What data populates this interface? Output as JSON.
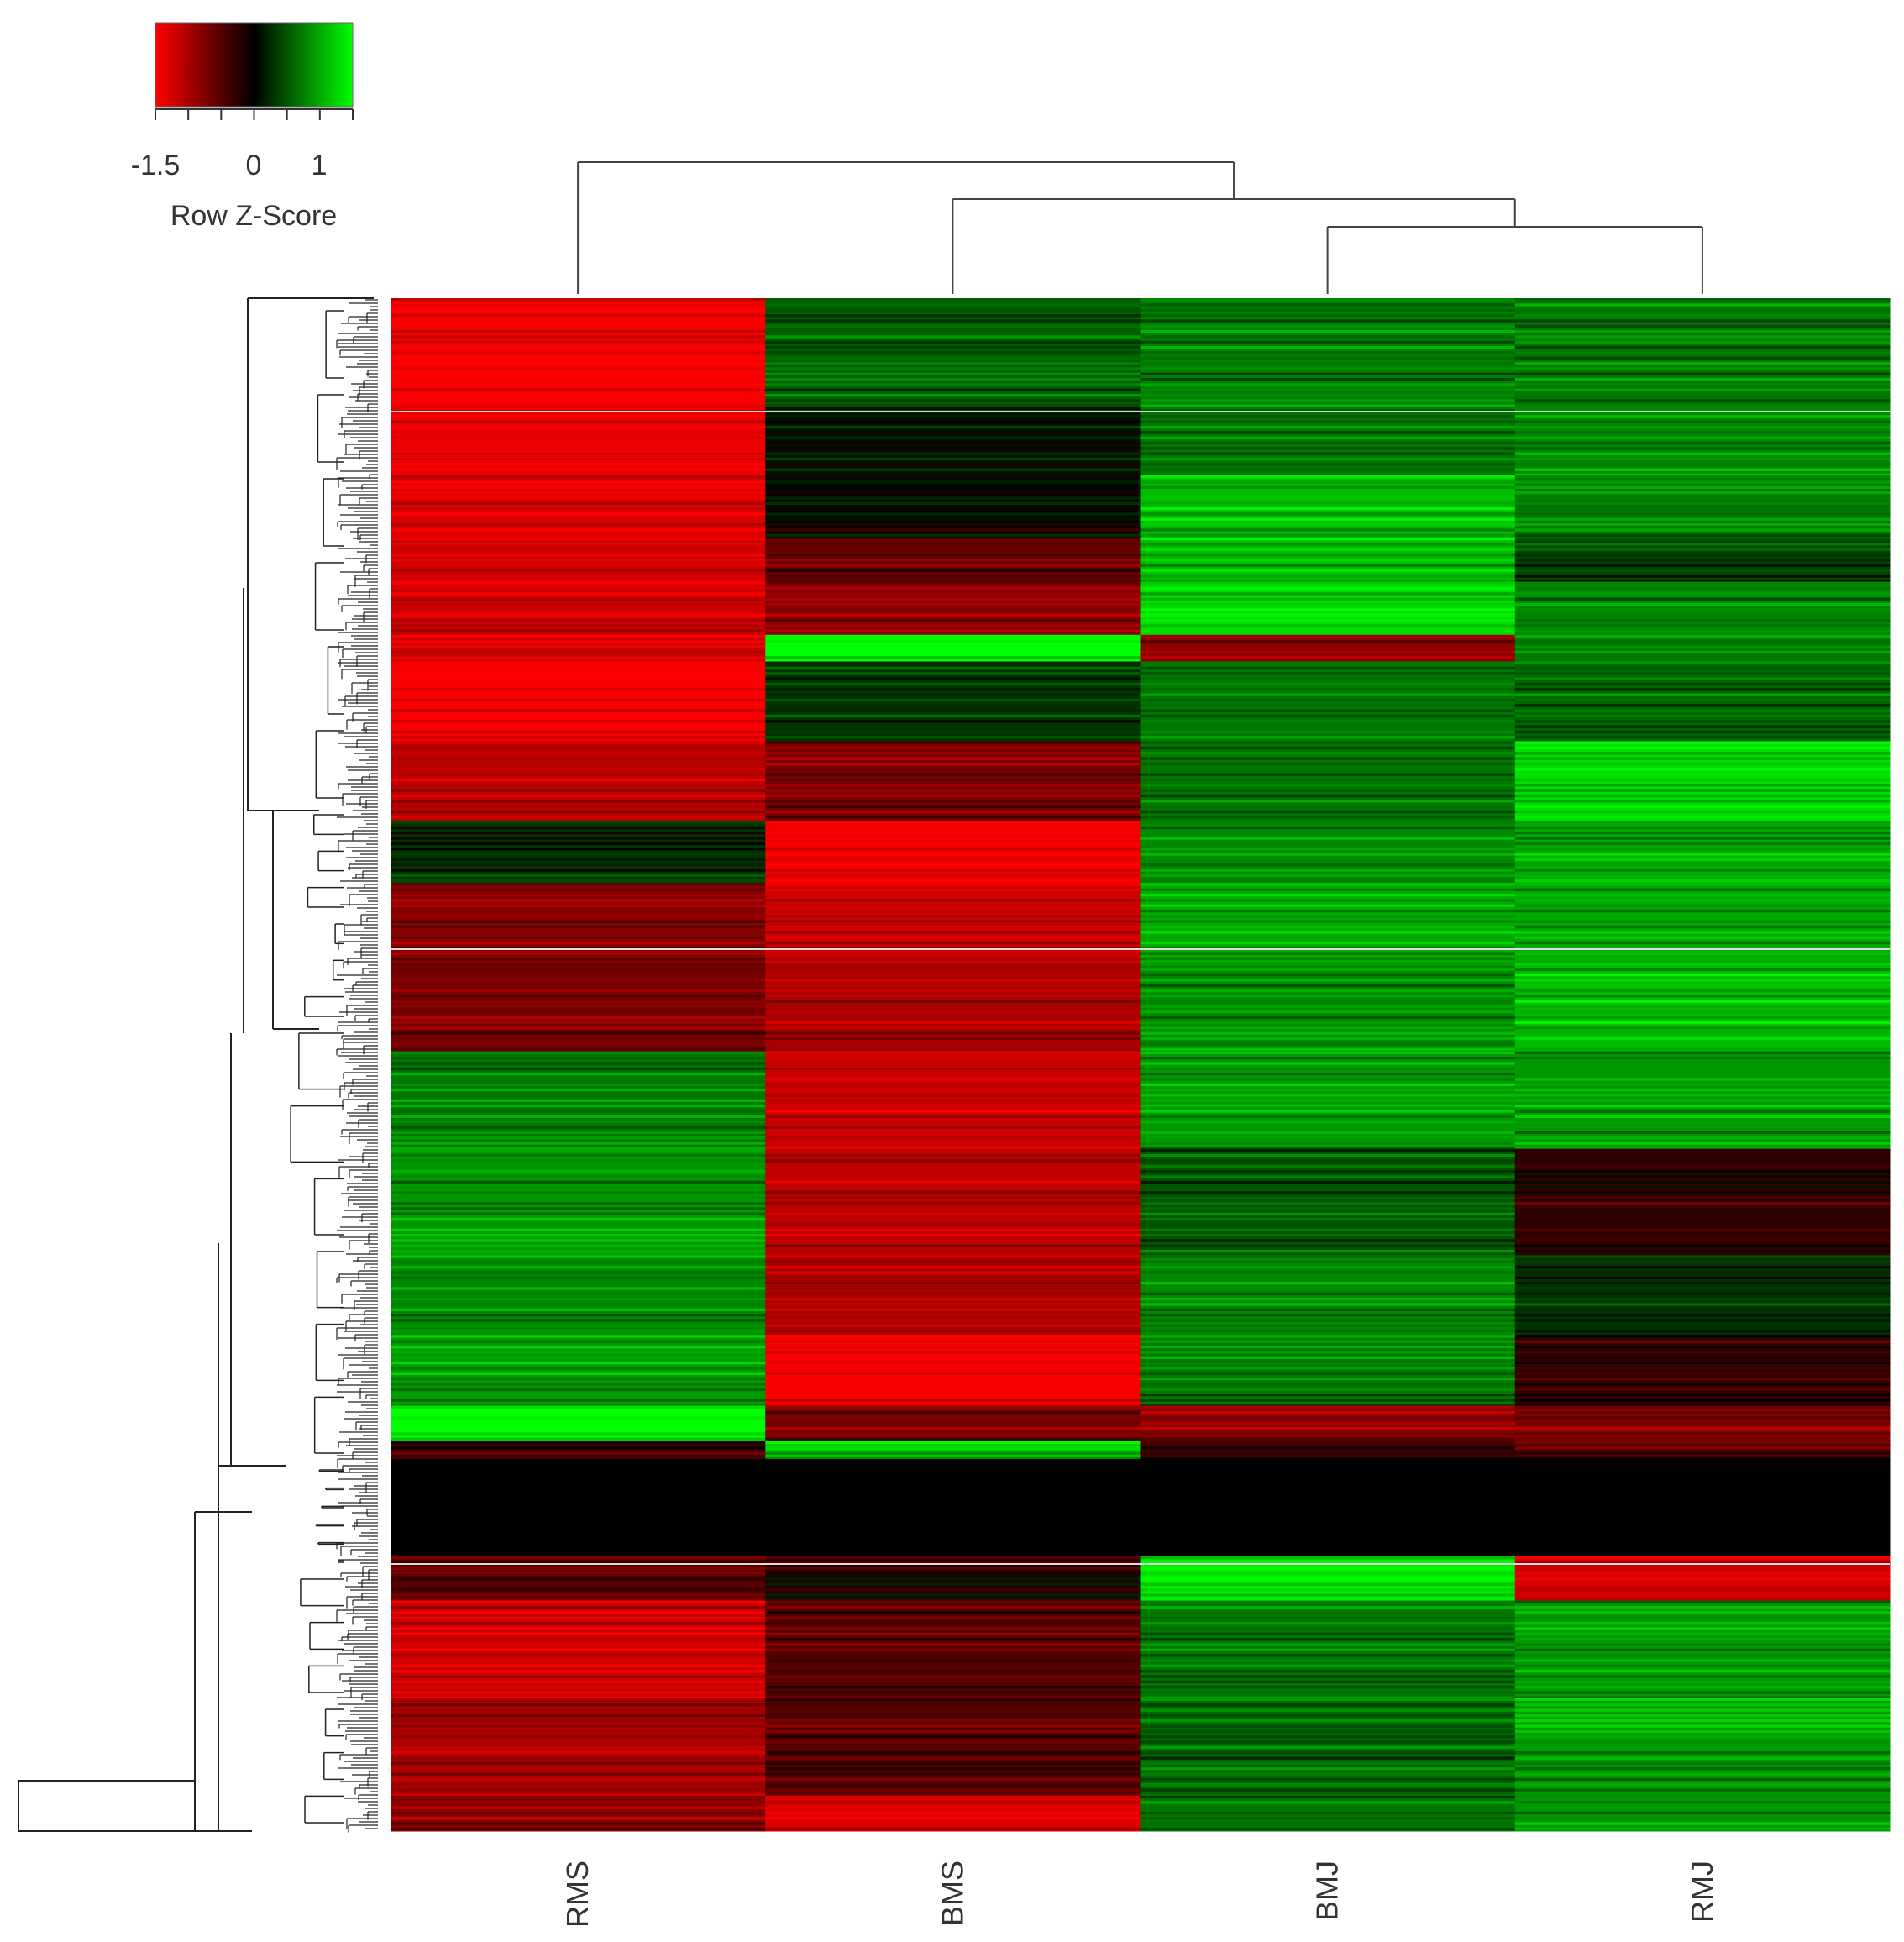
{
  "chart_data": {
    "type": "heatmap",
    "title": "",
    "columns": [
      "RMS",
      "BMS",
      "BMJ",
      "RMJ"
    ],
    "column_dendrogram": "((BMJ,RMJ),BMS),RMS",
    "row_dendrogram": true,
    "color_key": {
      "title": "Row Z-Score",
      "ticks": [
        "-1.5",
        "0",
        "1"
      ],
      "range": [
        -1.5,
        1.5
      ],
      "low_color": "#ff0000",
      "mid_color": "#000000",
      "high_color": "#00ff00"
    },
    "row_blocks": [
      {
        "rows": 60,
        "values": [
          -1.45,
          0.55,
          0.75,
          0.7
        ]
      },
      {
        "rows": 40,
        "values": [
          -1.4,
          0.1,
          0.7,
          0.8
        ]
      },
      {
        "rows": 35,
        "values": [
          -1.3,
          0.05,
          1.1,
          0.7
        ]
      },
      {
        "rows": 25,
        "values": [
          -1.2,
          -0.6,
          1.1,
          0.4
        ]
      },
      {
        "rows": 30,
        "values": [
          -1.2,
          -0.8,
          1.3,
          0.8
        ]
      },
      {
        "rows": 15,
        "values": [
          -1.2,
          1.5,
          -0.8,
          0.7
        ]
      },
      {
        "rows": 45,
        "values": [
          -1.45,
          0.3,
          0.7,
          0.6
        ]
      },
      {
        "rows": 45,
        "values": [
          -1.1,
          -0.7,
          0.7,
          1.3
        ]
      },
      {
        "rows": 35,
        "values": [
          0.3,
          -1.4,
          0.8,
          1.0
        ]
      },
      {
        "rows": 45,
        "values": [
          -0.8,
          -1.2,
          1.0,
          1.0
        ]
      },
      {
        "rows": 50,
        "values": [
          -0.7,
          -1.0,
          0.8,
          1.1
        ]
      },
      {
        "rows": 55,
        "values": [
          0.7,
          -1.2,
          0.9,
          0.9
        ]
      },
      {
        "rows": 60,
        "values": [
          0.9,
          -1.1,
          0.5,
          -0.3
        ]
      },
      {
        "rows": 45,
        "values": [
          0.8,
          -1.0,
          0.8,
          0.3
        ]
      },
      {
        "rows": 40,
        "values": [
          0.9,
          -1.45,
          0.7,
          -0.3
        ]
      },
      {
        "rows": 20,
        "values": [
          1.5,
          -0.7,
          -0.8,
          -0.8
        ]
      },
      {
        "rows": 10,
        "values": [
          -0.4,
          1.2,
          -0.4,
          -0.5
        ]
      },
      {
        "rows": 55,
        "values": [
          0.0,
          0.0,
          0.0,
          0.0
        ]
      },
      {
        "rows": 25,
        "values": [
          -0.5,
          -0.2,
          1.4,
          -1.2
        ]
      },
      {
        "rows": 55,
        "values": [
          -1.2,
          -0.5,
          0.7,
          0.9
        ]
      },
      {
        "rows": 55,
        "values": [
          -1.0,
          -0.5,
          0.6,
          0.9
        ]
      },
      {
        "rows": 20,
        "values": [
          -0.8,
          -1.3,
          0.7,
          0.9
        ]
      }
    ]
  }
}
